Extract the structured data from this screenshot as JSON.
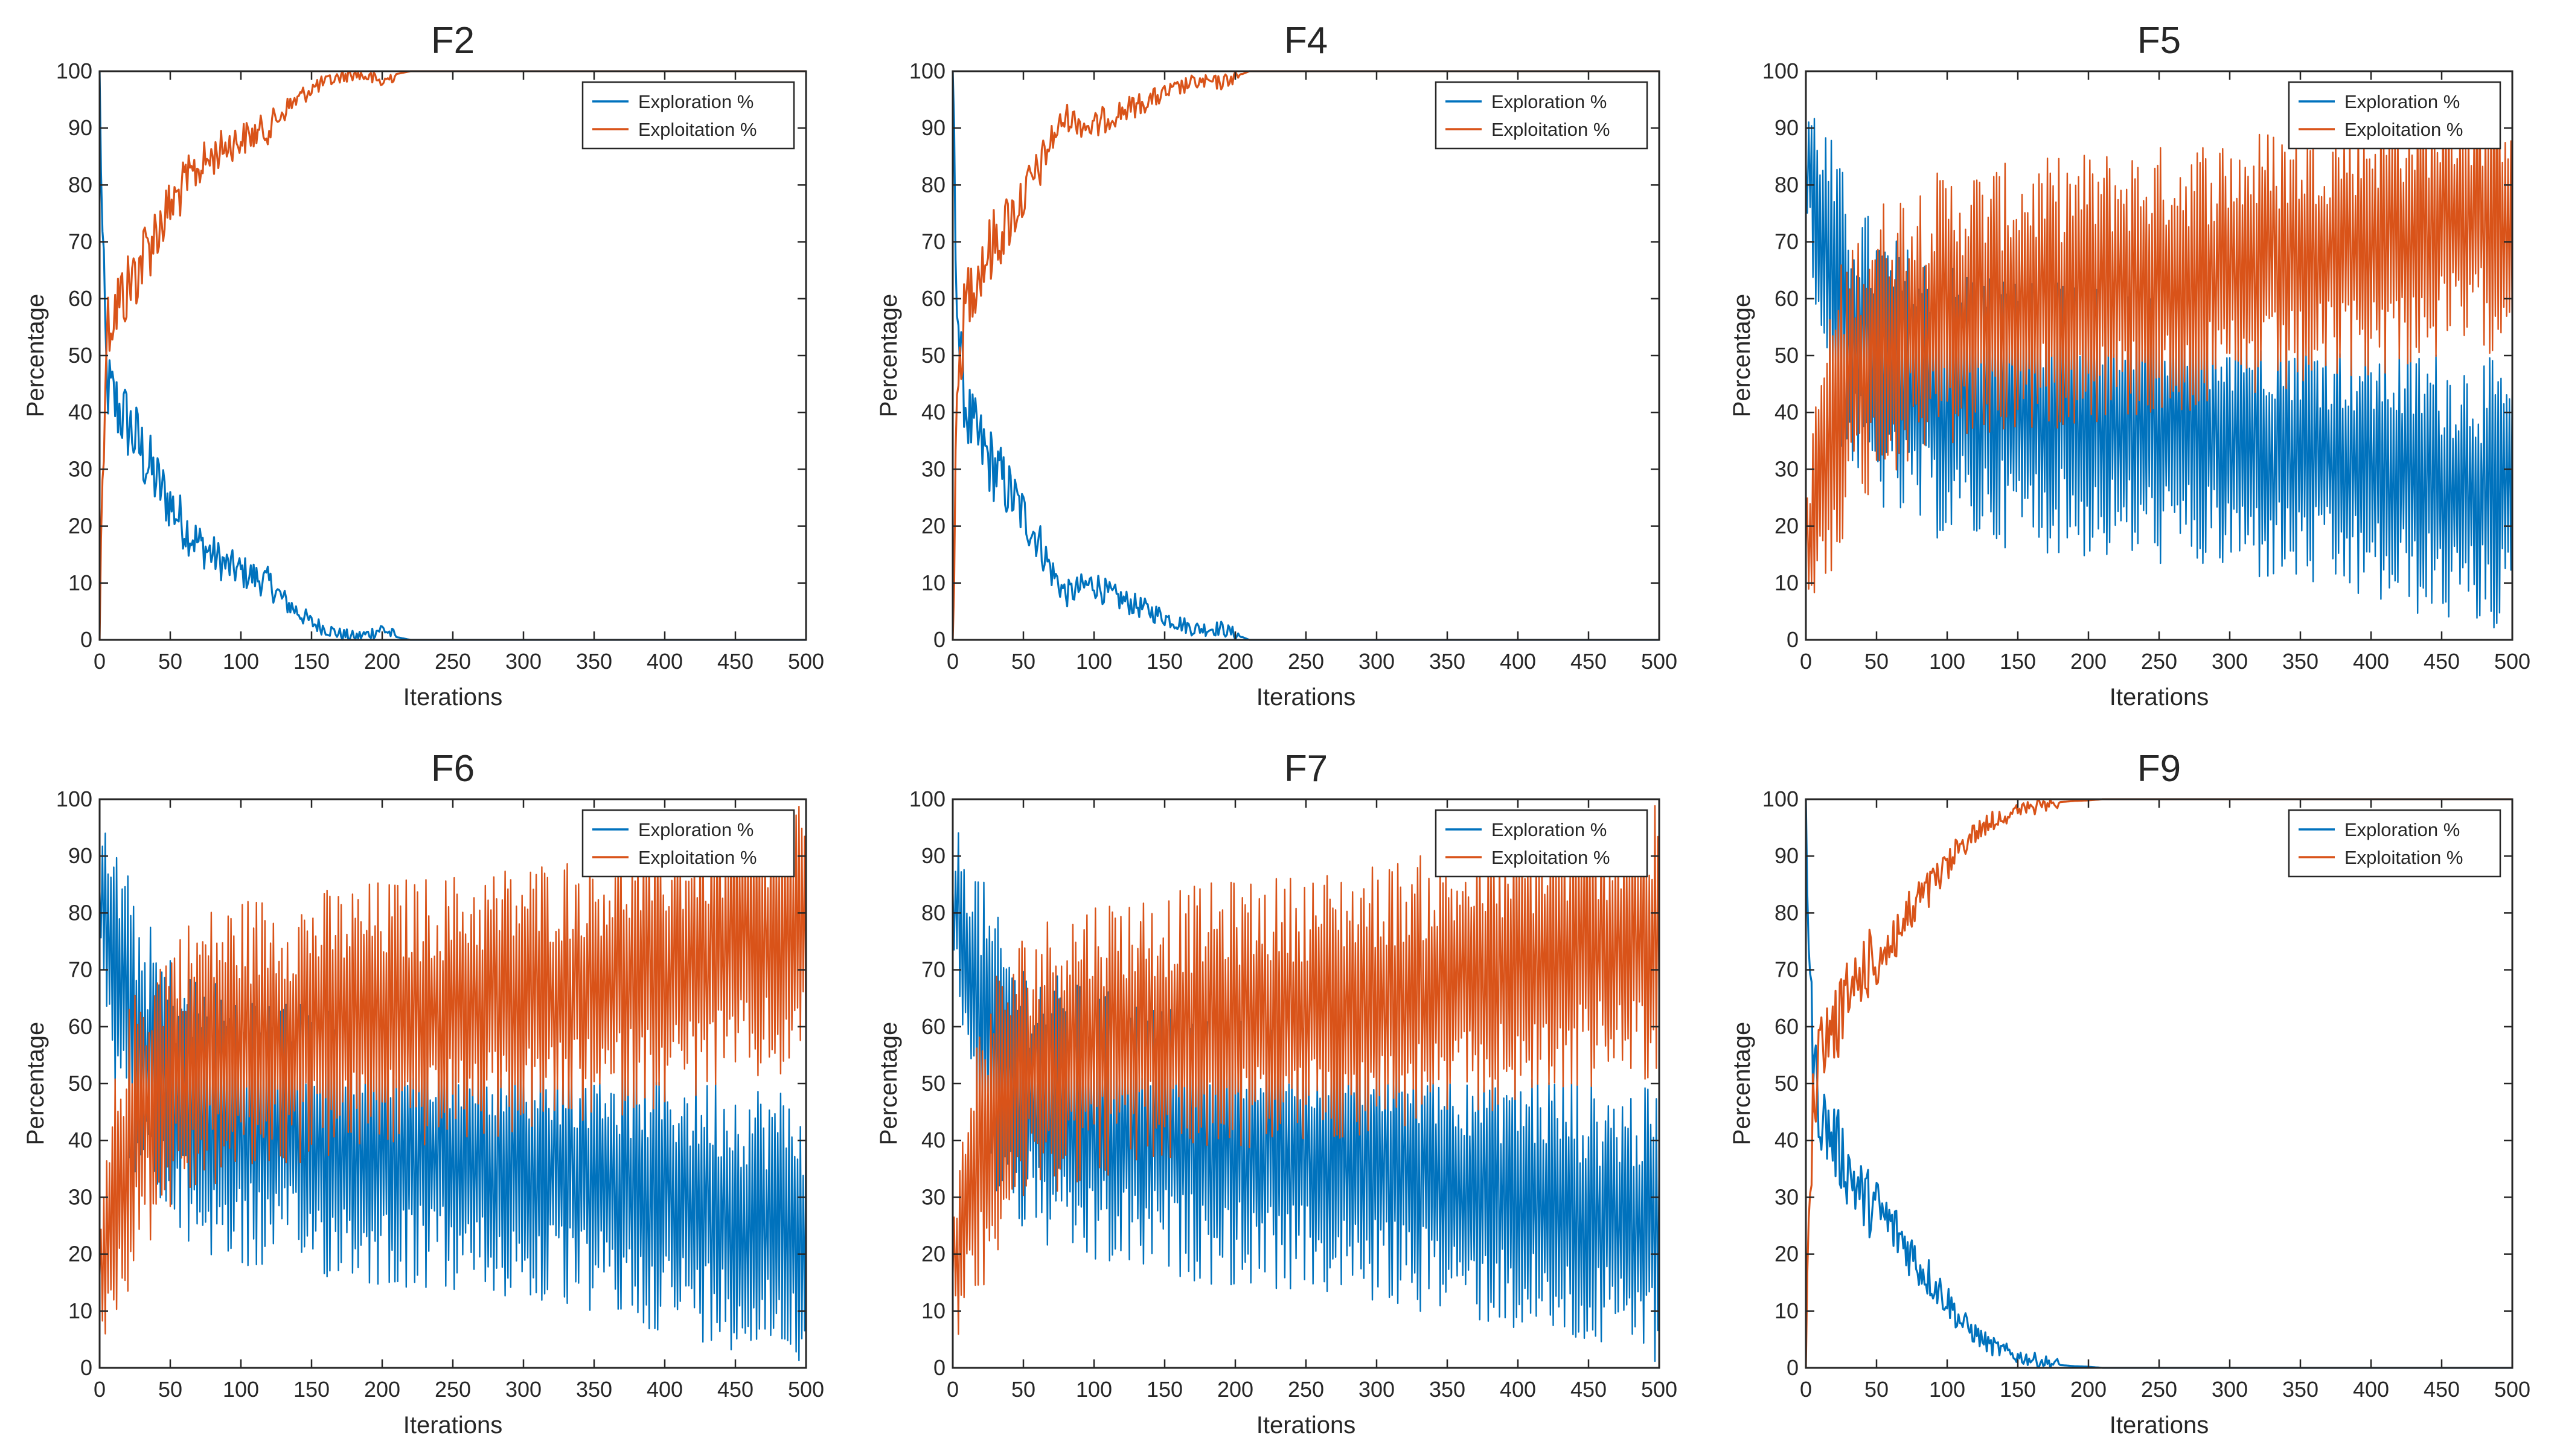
{
  "colors": {
    "exploration": "#0072BD",
    "exploitation": "#D95319",
    "axis": "#262626",
    "background": "#ffffff"
  },
  "chart_data": [
    {
      "type": "line",
      "title": "F2",
      "xlabel": "Iterations",
      "ylabel": "Percentage",
      "xlim": [
        0,
        500
      ],
      "ylim": [
        0,
        100
      ],
      "xticks": [
        0,
        50,
        100,
        150,
        200,
        250,
        300,
        350,
        400,
        450,
        500
      ],
      "yticks": [
        0,
        10,
        20,
        30,
        40,
        50,
        60,
        70,
        80,
        90,
        100
      ],
      "legend": "top-right",
      "grid": false,
      "series": [
        {
          "name": "Exploration %",
          "color": "#0072BD",
          "x": [
            0,
            2,
            5,
            10,
            15,
            20,
            30,
            40,
            50,
            60,
            70,
            80,
            90,
            100,
            110,
            120,
            130,
            140,
            150,
            160,
            170,
            180,
            190,
            200,
            210,
            220,
            300,
            400,
            500
          ],
          "values": [
            100,
            70,
            45,
            42,
            40,
            38,
            33,
            28,
            24,
            20,
            17,
            15,
            13,
            12,
            11,
            10,
            7,
            5,
            3,
            2,
            1,
            0.5,
            1,
            2,
            0.5,
            0,
            0,
            0,
            0
          ]
        },
        {
          "name": "Exploitation %",
          "color": "#D95319",
          "x": [
            0,
            2,
            5,
            10,
            15,
            20,
            30,
            40,
            50,
            60,
            70,
            80,
            90,
            100,
            110,
            120,
            130,
            140,
            150,
            160,
            170,
            180,
            190,
            200,
            210,
            220,
            300,
            400,
            500
          ],
          "values": [
            0,
            30,
            55,
            58,
            60,
            62,
            67,
            72,
            76,
            80,
            83,
            85,
            87,
            88,
            89,
            90,
            93,
            95,
            97,
            98,
            99,
            99.5,
            99,
            98,
            99.5,
            100,
            100,
            100,
            100
          ]
        }
      ]
    },
    {
      "type": "line",
      "title": "F4",
      "xlabel": "Iterations",
      "ylabel": "Percentage",
      "xlim": [
        0,
        500
      ],
      "ylim": [
        0,
        100
      ],
      "xticks": [
        0,
        50,
        100,
        150,
        200,
        250,
        300,
        350,
        400,
        450,
        500
      ],
      "yticks": [
        0,
        10,
        20,
        30,
        40,
        50,
        60,
        70,
        80,
        90,
        100
      ],
      "legend": "top-right",
      "grid": false,
      "series": [
        {
          "name": "Exploration %",
          "color": "#0072BD",
          "x": [
            0,
            2,
            5,
            10,
            15,
            20,
            30,
            40,
            50,
            60,
            70,
            80,
            90,
            100,
            110,
            120,
            130,
            140,
            150,
            160,
            170,
            180,
            190,
            200,
            210,
            300,
            400,
            500
          ],
          "values": [
            100,
            70,
            50,
            40,
            36,
            34,
            30,
            26,
            22,
            18,
            12,
            8,
            9,
            10,
            8,
            7,
            6,
            5,
            4,
            3,
            2,
            2,
            2,
            1,
            0,
            0,
            0,
            0
          ]
        },
        {
          "name": "Exploitation %",
          "color": "#D95319",
          "x": [
            0,
            2,
            5,
            10,
            15,
            20,
            30,
            40,
            50,
            60,
            70,
            80,
            90,
            100,
            110,
            120,
            130,
            140,
            150,
            160,
            170,
            180,
            190,
            200,
            210,
            300,
            400,
            500
          ],
          "values": [
            0,
            30,
            50,
            60,
            64,
            66,
            70,
            74,
            78,
            82,
            88,
            92,
            91,
            90,
            92,
            93,
            94,
            95,
            96,
            97,
            98,
            98,
            98,
            99,
            100,
            100,
            100,
            100
          ]
        }
      ]
    },
    {
      "type": "line",
      "title": "F5",
      "xlabel": "Iterations",
      "ylabel": "Percentage",
      "xlim": [
        0,
        500
      ],
      "ylim": [
        0,
        100
      ],
      "xticks": [
        0,
        50,
        100,
        150,
        200,
        250,
        300,
        350,
        400,
        450,
        500
      ],
      "yticks": [
        0,
        10,
        20,
        30,
        40,
        50,
        60,
        70,
        80,
        90,
        100
      ],
      "legend": "top-right",
      "grid": false,
      "series": [
        {
          "name": "Exploration %",
          "color": "#0072BD",
          "x": [
            0,
            10,
            20,
            30,
            50,
            75,
            100,
            150,
            200,
            250,
            300,
            350,
            400,
            450,
            500
          ],
          "values": [
            85,
            72,
            62,
            55,
            48,
            44,
            42,
            40,
            38,
            37,
            35,
            33,
            30,
            27,
            25
          ],
          "spread": [
            10,
            22,
            25,
            25,
            25,
            25,
            25,
            24,
            24,
            24,
            24,
            24,
            24,
            24,
            24
          ]
        },
        {
          "name": "Exploitation %",
          "color": "#D95319",
          "x": [
            0,
            10,
            20,
            30,
            50,
            75,
            100,
            150,
            200,
            250,
            300,
            350,
            400,
            450,
            500
          ],
          "values": [
            15,
            28,
            38,
            45,
            52,
            56,
            58,
            60,
            62,
            63,
            65,
            67,
            70,
            73,
            75
          ],
          "spread": [
            10,
            22,
            25,
            25,
            25,
            25,
            25,
            24,
            24,
            24,
            24,
            24,
            24,
            24,
            24
          ]
        }
      ]
    },
    {
      "type": "line",
      "title": "F6",
      "xlabel": "Iterations",
      "ylabel": "Percentage",
      "xlim": [
        0,
        500
      ],
      "ylim": [
        0,
        100
      ],
      "xticks": [
        0,
        50,
        100,
        150,
        200,
        250,
        300,
        350,
        400,
        450,
        500
      ],
      "yticks": [
        0,
        10,
        20,
        30,
        40,
        50,
        60,
        70,
        80,
        90,
        100
      ],
      "legend": "top-right",
      "grid": false,
      "series": [
        {
          "name": "Exploration %",
          "color": "#0072BD",
          "x": [
            0,
            10,
            20,
            30,
            50,
            75,
            100,
            150,
            200,
            250,
            300,
            350,
            400,
            450,
            500
          ],
          "values": [
            85,
            72,
            62,
            55,
            48,
            44,
            42,
            40,
            38,
            37,
            35,
            33,
            30,
            27,
            25
          ],
          "spread": [
            10,
            22,
            25,
            25,
            25,
            25,
            25,
            24,
            24,
            24,
            24,
            24,
            24,
            24,
            24
          ]
        },
        {
          "name": "Exploitation %",
          "color": "#D95319",
          "x": [
            0,
            10,
            20,
            30,
            50,
            75,
            100,
            150,
            200,
            250,
            300,
            350,
            400,
            450,
            500
          ],
          "values": [
            15,
            28,
            38,
            45,
            52,
            56,
            58,
            60,
            62,
            63,
            65,
            67,
            70,
            73,
            75
          ],
          "spread": [
            10,
            22,
            25,
            25,
            25,
            25,
            25,
            24,
            24,
            24,
            24,
            24,
            24,
            24,
            24
          ]
        }
      ]
    },
    {
      "type": "line",
      "title": "F7",
      "xlabel": "Iterations",
      "ylabel": "Percentage",
      "xlim": [
        0,
        500
      ],
      "ylim": [
        0,
        100
      ],
      "xticks": [
        0,
        50,
        100,
        150,
        200,
        250,
        300,
        350,
        400,
        450,
        500
      ],
      "yticks": [
        0,
        10,
        20,
        30,
        40,
        50,
        60,
        70,
        80,
        90,
        100
      ],
      "legend": "top-right",
      "grid": false,
      "series": [
        {
          "name": "Exploration %",
          "color": "#0072BD",
          "x": [
            0,
            10,
            20,
            30,
            50,
            75,
            100,
            150,
            200,
            250,
            300,
            350,
            400,
            450,
            500
          ],
          "values": [
            85,
            72,
            62,
            55,
            48,
            44,
            42,
            40,
            38,
            37,
            35,
            33,
            30,
            27,
            25
          ],
          "spread": [
            10,
            22,
            25,
            25,
            25,
            25,
            25,
            24,
            24,
            24,
            24,
            24,
            24,
            24,
            24
          ]
        },
        {
          "name": "Exploitation %",
          "color": "#D95319",
          "x": [
            0,
            10,
            20,
            30,
            50,
            75,
            100,
            150,
            200,
            250,
            300,
            350,
            400,
            450,
            500
          ],
          "values": [
            15,
            28,
            38,
            45,
            52,
            56,
            58,
            60,
            62,
            63,
            65,
            67,
            70,
            73,
            75
          ],
          "spread": [
            10,
            22,
            25,
            25,
            25,
            25,
            25,
            24,
            24,
            24,
            24,
            24,
            24,
            24,
            24
          ]
        }
      ]
    },
    {
      "type": "line",
      "title": "F9",
      "xlabel": "Iterations",
      "ylabel": "Percentage",
      "xlim": [
        0,
        500
      ],
      "ylim": [
        0,
        100
      ],
      "xticks": [
        0,
        50,
        100,
        150,
        200,
        250,
        300,
        350,
        400,
        450,
        500
      ],
      "yticks": [
        0,
        10,
        20,
        30,
        40,
        50,
        60,
        70,
        80,
        90,
        100
      ],
      "legend": "top-right",
      "grid": false,
      "series": [
        {
          "name": "Exploration %",
          "color": "#0072BD",
          "x": [
            0,
            2,
            5,
            10,
            15,
            20,
            30,
            40,
            50,
            60,
            70,
            80,
            90,
            100,
            110,
            120,
            130,
            140,
            150,
            160,
            170,
            180,
            190,
            200,
            210,
            300,
            400,
            500
          ],
          "values": [
            100,
            75,
            55,
            45,
            42,
            40,
            35,
            30,
            28,
            25,
            22,
            18,
            15,
            12,
            8,
            6,
            4,
            3,
            2,
            1.5,
            1,
            0.5,
            0.3,
            0.2,
            0,
            0,
            0,
            0
          ]
        },
        {
          "name": "Exploitation %",
          "color": "#D95319",
          "x": [
            0,
            2,
            5,
            10,
            15,
            20,
            30,
            40,
            50,
            60,
            70,
            80,
            90,
            100,
            110,
            120,
            130,
            140,
            150,
            160,
            170,
            180,
            190,
            200,
            210,
            300,
            400,
            500
          ],
          "values": [
            0,
            25,
            45,
            55,
            58,
            60,
            65,
            70,
            72,
            75,
            78,
            82,
            85,
            88,
            92,
            94,
            96,
            97,
            98,
            98.5,
            99,
            99.5,
            99.7,
            99.8,
            100,
            100,
            100,
            100
          ]
        }
      ]
    }
  ]
}
